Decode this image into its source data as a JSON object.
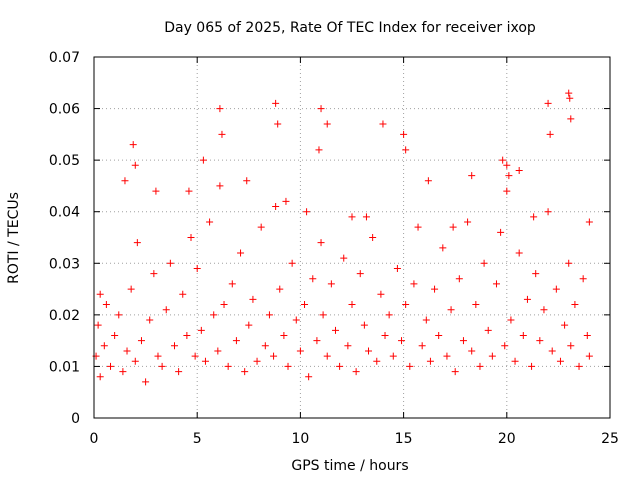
{
  "chart_data": {
    "type": "scatter",
    "title": "Day 065 of 2025, Rate Of TEC Index for receiver ixop",
    "xlabel": "GPS time / hours",
    "ylabel": "ROTI / TECUs",
    "xlim": [
      0,
      25
    ],
    "ylim": [
      0,
      0.07
    ],
    "xticks": [
      0,
      5,
      10,
      15,
      20,
      25
    ],
    "xtick_labels": [
      "0",
      "5",
      "10",
      "15",
      "20",
      "25"
    ],
    "yticks": [
      0,
      0.01,
      0.02,
      0.03,
      0.04,
      0.05,
      0.06,
      0.07
    ],
    "ytick_labels": [
      "0",
      "0.01",
      "0.02",
      "0.03",
      "0.04",
      "0.05",
      "0.06",
      "0.07"
    ],
    "grid": true,
    "marker": "+",
    "series": [
      {
        "name": "ROTI",
        "color": "#ff0000",
        "x": [
          0.1,
          0.2,
          0.3,
          0.5,
          0.6,
          0.8,
          1.0,
          1.2,
          1.4,
          1.6,
          1.8,
          2.0,
          2.1,
          2.3,
          2.5,
          2.7,
          2.9,
          3.1,
          3.3,
          3.5,
          3.7,
          3.9,
          4.1,
          4.3,
          4.5,
          4.7,
          4.9,
          5.0,
          5.2,
          5.4,
          5.6,
          5.8,
          6.0,
          6.1,
          6.3,
          6.5,
          6.7,
          6.9,
          7.1,
          7.3,
          7.5,
          7.7,
          7.9,
          8.1,
          8.3,
          8.5,
          8.7,
          8.8,
          9.0,
          9.2,
          9.4,
          9.6,
          9.8,
          10.0,
          10.2,
          10.4,
          10.6,
          10.8,
          11.0,
          11.1,
          11.3,
          11.5,
          11.7,
          11.9,
          12.1,
          12.3,
          12.5,
          12.7,
          12.9,
          13.1,
          13.3,
          13.5,
          13.7,
          13.9,
          14.1,
          14.3,
          14.5,
          14.7,
          14.9,
          15.1,
          15.3,
          15.5,
          15.7,
          15.9,
          16.1,
          16.3,
          16.5,
          16.7,
          16.9,
          17.1,
          17.3,
          17.5,
          17.7,
          17.9,
          18.1,
          18.3,
          18.5,
          18.7,
          18.9,
          19.1,
          19.3,
          19.5,
          19.7,
          19.9,
          20.0,
          20.2,
          20.4,
          20.6,
          20.8,
          21.0,
          21.2,
          21.4,
          21.6,
          21.8,
          22.0,
          22.2,
          22.4,
          22.6,
          22.8,
          23.0,
          23.1,
          23.3,
          23.5,
          23.7,
          23.9,
          24.0,
          0.3,
          1.9,
          2.0,
          5.3,
          6.1,
          6.2,
          8.8,
          8.9,
          10.9,
          11.0,
          11.3,
          14.0,
          15.0,
          15.1,
          19.8,
          20.0,
          20.1,
          22.0,
          22.1,
          23.0,
          23.05,
          23.1,
          18.3,
          16.2,
          4.6,
          9.3,
          12.5,
          20.6,
          1.5,
          3.0,
          7.4,
          10.3,
          13.2,
          17.4,
          21.3,
          24.0
        ],
        "y": [
          0.012,
          0.018,
          0.008,
          0.014,
          0.022,
          0.01,
          0.016,
          0.02,
          0.009,
          0.013,
          0.025,
          0.011,
          0.034,
          0.015,
          0.007,
          0.019,
          0.028,
          0.012,
          0.01,
          0.021,
          0.03,
          0.014,
          0.009,
          0.024,
          0.016,
          0.035,
          0.012,
          0.029,
          0.017,
          0.011,
          0.038,
          0.02,
          0.013,
          0.045,
          0.022,
          0.01,
          0.026,
          0.015,
          0.032,
          0.009,
          0.018,
          0.023,
          0.011,
          0.037,
          0.014,
          0.02,
          0.012,
          0.041,
          0.025,
          0.016,
          0.01,
          0.03,
          0.019,
          0.013,
          0.022,
          0.008,
          0.027,
          0.015,
          0.034,
          0.02,
          0.012,
          0.026,
          0.017,
          0.01,
          0.031,
          0.014,
          0.022,
          0.009,
          0.028,
          0.018,
          0.013,
          0.035,
          0.011,
          0.024,
          0.016,
          0.02,
          0.012,
          0.029,
          0.015,
          0.022,
          0.01,
          0.026,
          0.037,
          0.014,
          0.019,
          0.011,
          0.025,
          0.016,
          0.033,
          0.012,
          0.021,
          0.009,
          0.027,
          0.015,
          0.038,
          0.013,
          0.022,
          0.01,
          0.03,
          0.017,
          0.012,
          0.026,
          0.036,
          0.014,
          0.044,
          0.019,
          0.011,
          0.032,
          0.016,
          0.023,
          0.01,
          0.028,
          0.015,
          0.021,
          0.04,
          0.013,
          0.025,
          0.011,
          0.018,
          0.03,
          0.014,
          0.022,
          0.01,
          0.027,
          0.016,
          0.012,
          0.024,
          0.053,
          0.049,
          0.05,
          0.06,
          0.055,
          0.061,
          0.057,
          0.052,
          0.06,
          0.057,
          0.057,
          0.055,
          0.052,
          0.05,
          0.049,
          0.047,
          0.061,
          0.055,
          0.063,
          0.062,
          0.058,
          0.047,
          0.046,
          0.044,
          0.042,
          0.039,
          0.048,
          0.046,
          0.044,
          0.046,
          0.04,
          0.039,
          0.037,
          0.039,
          0.038
        ]
      }
    ]
  }
}
